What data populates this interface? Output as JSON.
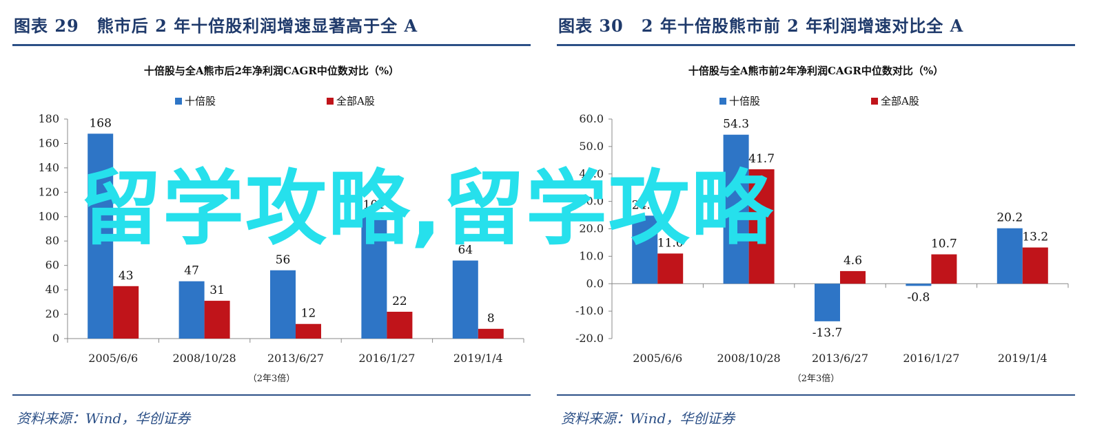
{
  "watermark": "留学攻略,留学攻略",
  "colors": {
    "series1": "#2e75c6",
    "series2": "#c0141a",
    "rule": "#2b4f86"
  },
  "panels": [
    {
      "fig_label": "图表 29",
      "fig_title": "熊市后 2 年十倍股利润增速显著高于全 A",
      "source": "资料来源：Wind，华创证券"
    },
    {
      "fig_label": "图表 30",
      "fig_title": "2 年十倍股熊市前 2 年利润增速对比全 A",
      "source": "资料来源：Wind，华创证券"
    }
  ],
  "chart_data": [
    {
      "type": "bar",
      "title": "十倍股与全A熊市后2年净利润CAGR中位数对比（%）",
      "categories": [
        "2005/6/6",
        "2008/10/28",
        "2013/6/27",
        "2016/1/27",
        "2019/1/4"
      ],
      "category_note": "（2年3倍）",
      "series": [
        {
          "name": "十倍股",
          "values": [
            168,
            47,
            56,
            101,
            64
          ]
        },
        {
          "name": "全部A股",
          "values": [
            43,
            31,
            12,
            22,
            8
          ]
        }
      ],
      "ylim": [
        0,
        180
      ],
      "yticks": [
        "0",
        "20",
        "40",
        "60",
        "80",
        "100",
        "120",
        "140",
        "160",
        "180"
      ],
      "ytick_values": [
        0,
        20,
        40,
        60,
        80,
        100,
        120,
        140,
        160,
        180
      ],
      "value_labels": [
        "168",
        "47",
        "56",
        "101",
        "64",
        "43",
        "31",
        "12",
        "22",
        "8"
      ],
      "legend": "top-center",
      "grid": false
    },
    {
      "type": "bar",
      "title": "十倍股与全A熊市前2年净利润CAGR中位数对比（%）",
      "categories": [
        "2005/6/6",
        "2008/10/28",
        "2013/6/27",
        "2016/1/27",
        "2019/1/4"
      ],
      "category_note": "（2年3倍）",
      "series": [
        {
          "name": "十倍股",
          "values": [
            24.8,
            54.3,
            -13.7,
            -0.8,
            20.2
          ]
        },
        {
          "name": "全部A股",
          "values": [
            11.0,
            41.7,
            4.6,
            10.7,
            13.2
          ]
        }
      ],
      "ylim": [
        -20,
        60
      ],
      "yticks": [
        "-20.0",
        "-10.0",
        "0.0",
        "10.0",
        "20.0",
        "30.0",
        "40.0",
        "50.0",
        "60.0"
      ],
      "ytick_values": [
        -20,
        -10,
        0,
        10,
        20,
        30,
        40,
        50,
        60
      ],
      "value_labels": [
        "24.8",
        "54.3",
        "-13.7",
        "-0.8",
        "20.2",
        "11.0",
        "41.7",
        "4.6",
        "10.7",
        "13.2"
      ],
      "legend": "top-center",
      "grid": false
    }
  ]
}
